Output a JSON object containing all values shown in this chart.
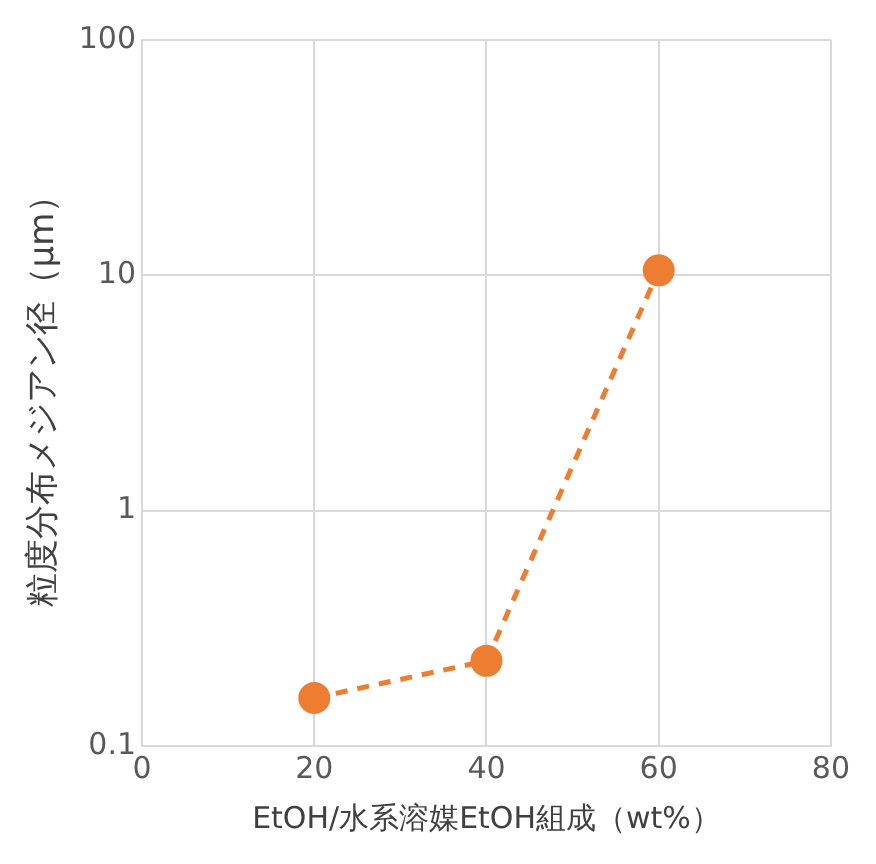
{
  "chart_data": {
    "type": "line",
    "xlabel": "EtOH/水系溶媒EtOH組成（wt%）",
    "ylabel": "粒度分布メジアン径（µm）",
    "x": [
      20,
      40,
      60
    ],
    "series": [
      {
        "color": "#ed7d31",
        "values": [
          0.16,
          0.23,
          10.5
        ]
      }
    ],
    "xlim": [
      0,
      80
    ],
    "xticks": [
      0,
      20,
      40,
      60,
      80
    ],
    "ylim": [
      0.1,
      100
    ],
    "yticks": [
      0.1,
      1,
      10,
      100
    ],
    "log": "y",
    "grid": true,
    "legend": false,
    "marker": "circle",
    "line_style": "dashed"
  }
}
